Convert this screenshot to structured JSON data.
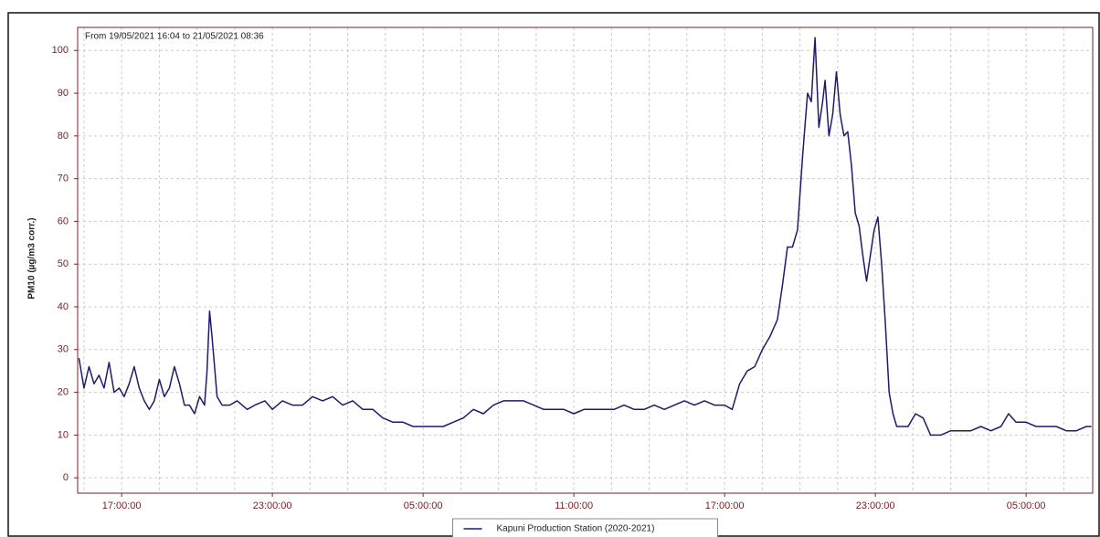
{
  "chart_data": {
    "type": "line",
    "title": "From 19/05/2021 16:04 to 21/05/2021 08:36",
    "y_label": "PM10 (µg/m3 corr.)",
    "x": [
      15.3,
      15.5,
      15.7,
      15.9,
      16.1,
      16.3,
      16.5,
      16.7,
      16.9,
      17.1,
      17.3,
      17.5,
      17.7,
      17.9,
      18.1,
      18.3,
      18.5,
      18.7,
      18.9,
      19.1,
      19.3,
      19.5,
      19.7,
      19.9,
      20.1,
      20.3,
      20.4,
      20.5,
      20.6,
      20.8,
      21.0,
      21.3,
      21.6,
      22.0,
      22.3,
      22.7,
      23.0,
      23.4,
      23.8,
      24.2,
      24.6,
      25.0,
      25.4,
      25.8,
      26.2,
      26.6,
      27.0,
      27.4,
      27.8,
      28.2,
      28.6,
      29.0,
      29.4,
      29.8,
      30.2,
      30.6,
      31.0,
      31.4,
      31.8,
      32.2,
      32.6,
      33.0,
      33.4,
      33.8,
      34.2,
      34.6,
      35.0,
      35.4,
      35.8,
      36.2,
      36.6,
      37.0,
      37.4,
      37.8,
      38.2,
      38.6,
      39.0,
      39.4,
      39.8,
      40.2,
      40.6,
      41.0,
      41.3,
      41.6,
      41.9,
      42.2,
      42.5,
      42.8,
      43.1,
      43.3,
      43.5,
      43.7,
      43.9,
      44.1,
      44.3,
      44.45,
      44.6,
      44.75,
      44.9,
      45.0,
      45.15,
      45.3,
      45.45,
      45.6,
      45.75,
      45.9,
      46.05,
      46.2,
      46.35,
      46.5,
      46.65,
      46.8,
      46.95,
      47.1,
      47.25,
      47.4,
      47.55,
      47.7,
      47.85,
      48.0,
      48.3,
      48.6,
      48.9,
      49.2,
      49.6,
      50.0,
      50.4,
      50.8,
      51.2,
      51.6,
      52.0,
      52.3,
      52.6,
      53.0,
      53.4,
      53.8,
      54.2,
      54.6,
      55.0,
      55.4,
      55.6
    ],
    "series": [
      {
        "name": "Kapuni Production Station (2020-2021)",
        "color": "#1c1c6b",
        "values": [
          28,
          21,
          26,
          22,
          24,
          21,
          27,
          20,
          21,
          19,
          22,
          26,
          21,
          18,
          16,
          18,
          23,
          19,
          21,
          26,
          22,
          17,
          17,
          15,
          19,
          17,
          25,
          39,
          33,
          19,
          17,
          17,
          18,
          16,
          17,
          18,
          16,
          18,
          17,
          17,
          19,
          18,
          19,
          17,
          18,
          16,
          16,
          14,
          13,
          13,
          12,
          12,
          12,
          12,
          13,
          14,
          16,
          15,
          17,
          18,
          18,
          18,
          17,
          16,
          16,
          16,
          15,
          16,
          16,
          16,
          16,
          17,
          16,
          16,
          17,
          16,
          17,
          18,
          17,
          18,
          17,
          17,
          16,
          22,
          25,
          26,
          30,
          33,
          37,
          45,
          54,
          54,
          58,
          75,
          90,
          88,
          103,
          82,
          88,
          93,
          80,
          85,
          95,
          85,
          80,
          81,
          73,
          62,
          59,
          52,
          46,
          52,
          58,
          61,
          50,
          36,
          20,
          15,
          12,
          12,
          12,
          15,
          14,
          10,
          10,
          11,
          11,
          11,
          12,
          11,
          12,
          15,
          13,
          13,
          12,
          12,
          12,
          11,
          11,
          12,
          12
        ]
      }
    ],
    "xlim": [
      15.25,
      55.65
    ],
    "xticks": [
      {
        "value": 17,
        "label": "17:00:00"
      },
      {
        "value": 23,
        "label": "23:00:00"
      },
      {
        "value": 29,
        "label": "05:00:00"
      },
      {
        "value": 35,
        "label": "11:00:00"
      },
      {
        "value": 41,
        "label": "17:00:00"
      },
      {
        "value": 47,
        "label": "23:00:00"
      },
      {
        "value": 53,
        "label": "05:00:00"
      }
    ],
    "xminor_ticks": [
      15.5,
      18.5,
      20,
      21.5,
      24.5,
      26,
      27.5,
      30.5,
      32,
      33.5,
      36.5,
      38,
      39.5,
      42.5,
      44,
      45.5,
      48.5,
      50,
      51.5,
      54.5
    ],
    "ylim": [
      -3.6,
      105.4
    ],
    "yticks": [
      0,
      10,
      20,
      30,
      40,
      50,
      60,
      70,
      80,
      90,
      100
    ],
    "grid": true,
    "legend": "bottom"
  }
}
